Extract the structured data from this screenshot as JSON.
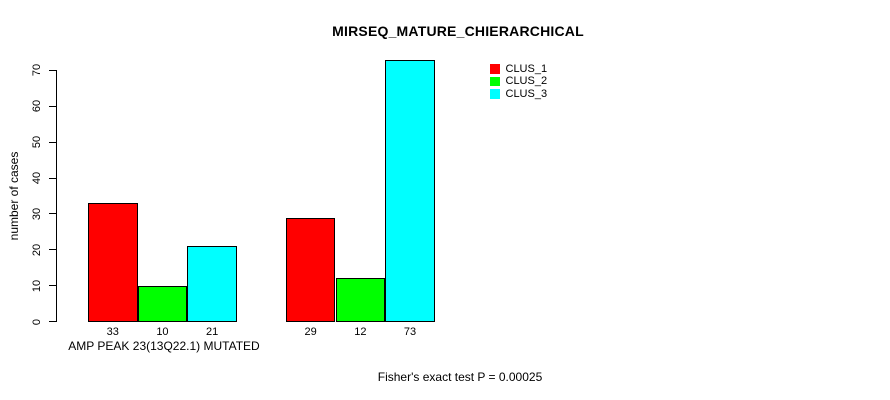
{
  "title": "MIRSEQ_MATURE_CHIERARCHICAL",
  "ylabel": "number of cases",
  "xlabel": "AMP PEAK 23(13Q22.1) MUTATED",
  "footnote": "Fisher's exact test P = 0.00025",
  "chart_data": {
    "type": "bar",
    "title": "MIRSEQ_MATURE_CHIERARCHICAL",
    "ylabel": "number of cases",
    "xlabel": "AMP PEAK 23(13Q22.1) MUTATED",
    "annotation": "Fisher's exact test P = 0.00025",
    "ylim": [
      0,
      73
    ],
    "yticks": [
      0,
      10,
      20,
      30,
      40,
      50,
      60,
      70
    ],
    "categories": [
      "AMP PEAK 23(13Q22.1) MUTATED",
      ""
    ],
    "series": [
      {
        "name": "CLUS_1",
        "color": "#ff0000",
        "values": [
          33,
          29
        ]
      },
      {
        "name": "CLUS_2",
        "color": "#00ff00",
        "values": [
          10,
          12
        ]
      },
      {
        "name": "CLUS_3",
        "color": "#00ffff",
        "values": [
          21,
          73
        ]
      }
    ],
    "bar_value_labels": [
      [
        33,
        10,
        21
      ],
      [
        29,
        12,
        73
      ]
    ],
    "legend_position": "top-right",
    "grid": false,
    "bar_border_color": "#000000",
    "background_color": "#ffffff"
  }
}
